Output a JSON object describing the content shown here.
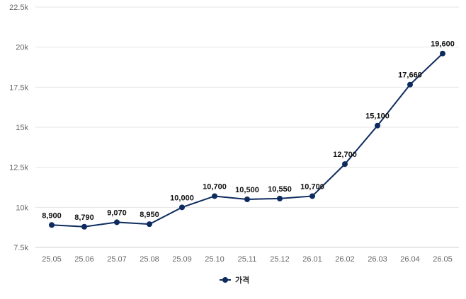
{
  "chart_data": {
    "type": "line",
    "categories": [
      "25.05",
      "25.06",
      "25.07",
      "25.08",
      "25.09",
      "25.10",
      "25.11",
      "25.12",
      "26.01",
      "26.02",
      "26.03",
      "26.04",
      "26.05"
    ],
    "series": [
      {
        "name": "가격",
        "values": [
          8900,
          8790,
          9070,
          8950,
          10000,
          10700,
          10500,
          10550,
          10700,
          12700,
          15100,
          17660,
          19600
        ],
        "labels": [
          "8,900",
          "8,790",
          "9,070",
          "8,950",
          "10,000",
          "10,700",
          "10,500",
          "10,550",
          "10,700",
          "12,700",
          "15,100",
          "17,660",
          "19,600"
        ],
        "color": "#0d2b5e"
      }
    ],
    "ylim": [
      7500,
      22500
    ],
    "yticks": [
      7500,
      10000,
      12500,
      15000,
      17500,
      20000,
      22500
    ],
    "ytick_labels": [
      "7.5k",
      "10k",
      "12.5k",
      "15k",
      "17.5k",
      "20k",
      "22.5k"
    ],
    "grid": true,
    "legend_position": "bottom",
    "title": "",
    "xlabel": "",
    "ylabel": ""
  }
}
